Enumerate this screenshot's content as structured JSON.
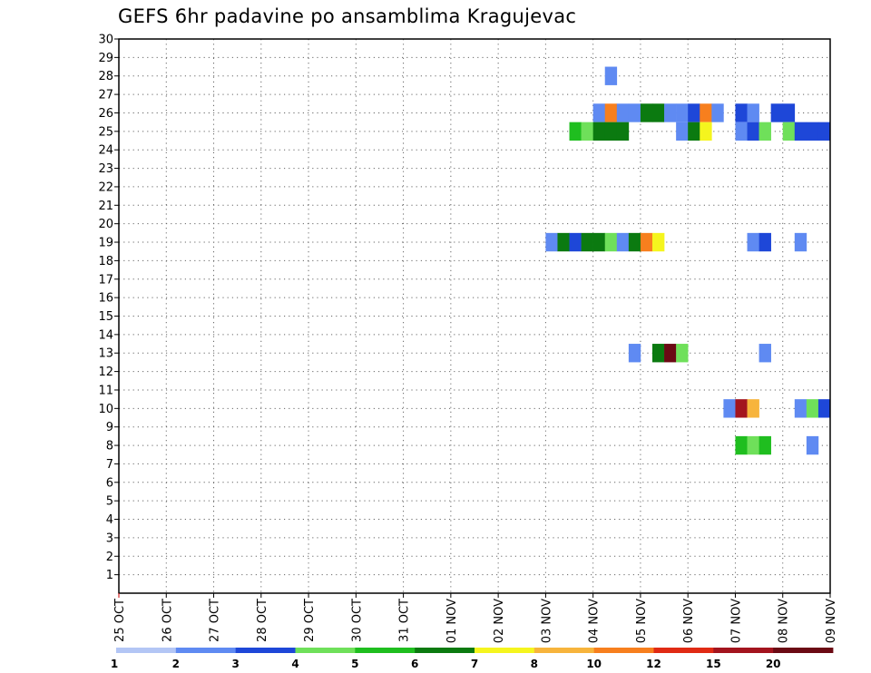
{
  "chart_data": {
    "type": "heatmap",
    "title": "GEFS 6hr padavine po ansamblima Kragujevac",
    "xlabel": "",
    "ylabel": "",
    "x_ticks": [
      "25 OCT",
      "26 OCT",
      "27 OCT",
      "28 OCT",
      "29 OCT",
      "30 OCT",
      "31 OCT",
      "01 NOV",
      "02 NOV",
      "03 NOV",
      "04 NOV",
      "05 NOV",
      "06 NOV",
      "07 NOV",
      "08 NOV",
      "09 NOV"
    ],
    "x_range_days": [
      0,
      15
    ],
    "y_ticks": [
      1,
      2,
      3,
      4,
      5,
      6,
      7,
      8,
      9,
      10,
      11,
      12,
      13,
      14,
      15,
      16,
      17,
      18,
      19,
      20,
      21,
      22,
      23,
      24,
      25,
      26,
      27,
      28,
      29,
      30
    ],
    "ylim": [
      0,
      30
    ],
    "grid": true,
    "step_hours": 6,
    "legend": {
      "thresholds": [
        "1",
        "2",
        "3",
        "4",
        "5",
        "6",
        "7",
        "8",
        "10",
        "12",
        "15",
        "20"
      ],
      "colors": [
        "#b3c6f5",
        "#5f8af2",
        "#1e47d8",
        "#6fe05a",
        "#1fbe1f",
        "#0b7a10",
        "#f5f51e",
        "#f7b43c",
        "#f77f1e",
        "#e02a14",
        "#a3141e",
        "#6b0a14"
      ]
    },
    "series": [
      {
        "member": 28,
        "cells": [
          [
            10.25,
            1
          ]
        ]
      },
      {
        "member": 26,
        "cells": [
          [
            10.0,
            1
          ],
          [
            10.25,
            8
          ],
          [
            10.5,
            1
          ],
          [
            10.75,
            1
          ],
          [
            11.0,
            5
          ],
          [
            11.25,
            5
          ],
          [
            11.5,
            1
          ],
          [
            11.75,
            1
          ],
          [
            12.0,
            2
          ],
          [
            12.25,
            8
          ],
          [
            12.5,
            1
          ],
          [
            13.0,
            2
          ],
          [
            13.25,
            1
          ],
          [
            13.75,
            2
          ],
          [
            14.0,
            2
          ]
        ]
      },
      {
        "member": 25,
        "cells": [
          [
            9.5,
            4
          ],
          [
            9.75,
            3
          ],
          [
            10.0,
            5
          ],
          [
            10.25,
            5
          ],
          [
            10.5,
            5
          ],
          [
            11.75,
            1
          ],
          [
            12.0,
            5
          ],
          [
            12.25,
            6
          ],
          [
            13.0,
            1
          ],
          [
            13.25,
            2
          ],
          [
            13.5,
            3
          ],
          [
            14.0,
            3
          ],
          [
            14.25,
            2
          ],
          [
            14.5,
            2
          ],
          [
            14.75,
            2
          ]
        ]
      },
      {
        "member": 19,
        "cells": [
          [
            9.0,
            1
          ],
          [
            9.25,
            5
          ],
          [
            9.5,
            2
          ],
          [
            9.75,
            5
          ],
          [
            10.0,
            5
          ],
          [
            10.25,
            3
          ],
          [
            10.5,
            1
          ],
          [
            10.75,
            5
          ],
          [
            11.0,
            8
          ],
          [
            11.25,
            6
          ],
          [
            13.25,
            1
          ],
          [
            13.5,
            2
          ],
          [
            14.25,
            1
          ]
        ]
      },
      {
        "member": 13,
        "cells": [
          [
            10.75,
            1
          ],
          [
            11.25,
            5
          ],
          [
            11.5,
            11
          ],
          [
            11.75,
            3
          ],
          [
            13.5,
            1
          ]
        ]
      },
      {
        "member": 10,
        "cells": [
          [
            12.75,
            1
          ],
          [
            13.0,
            10
          ],
          [
            13.25,
            7
          ],
          [
            14.25,
            1
          ],
          [
            14.5,
            3
          ],
          [
            14.75,
            2
          ]
        ]
      },
      {
        "member": 8,
        "cells": [
          [
            13.0,
            4
          ],
          [
            13.25,
            3
          ],
          [
            13.5,
            4
          ],
          [
            14.5,
            1
          ]
        ]
      }
    ]
  }
}
